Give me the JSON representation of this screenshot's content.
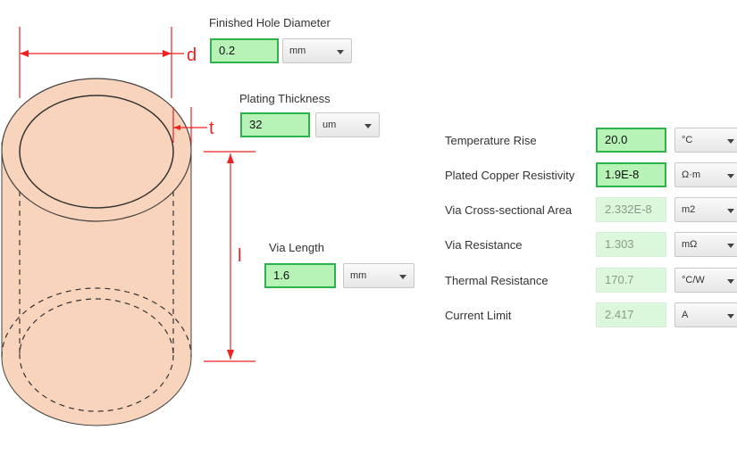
{
  "diagram": {
    "diameter_label": "d",
    "thickness_label": "t",
    "length_label": "l"
  },
  "finished_hole_diameter": {
    "label": "Finished Hole Diameter",
    "value": "0.2",
    "unit": "mm"
  },
  "plating_thickness": {
    "label": "Plating Thickness",
    "value": "32",
    "unit": "um"
  },
  "via_length": {
    "label": "Via Length",
    "value": "1.6",
    "unit": "mm"
  },
  "results": [
    {
      "label": "Temperature Rise",
      "value": "20.0",
      "unit": "°C",
      "editable": true
    },
    {
      "label": "Plated Copper Resistivity",
      "value": "1.9E-8",
      "unit": "Ω·m",
      "editable": true
    },
    {
      "label": "Via Cross-sectional Area",
      "value": "2.332E-8",
      "unit": "m2",
      "editable": false
    },
    {
      "label": "Via Resistance",
      "value": "1.303",
      "unit": "mΩ",
      "editable": false
    },
    {
      "label": "Thermal Resistance",
      "value": "170.7",
      "unit": "°C/W",
      "editable": false
    },
    {
      "label": "Current Limit",
      "value": "2.417",
      "unit": "A",
      "editable": false
    }
  ],
  "colors": {
    "via_fill": "#f9d4bd",
    "dimension_lines": "#ee2222",
    "input_border": "#2db34a",
    "input_fill": "#b7f3b7",
    "readonly_fill": "#dcf8dc"
  }
}
